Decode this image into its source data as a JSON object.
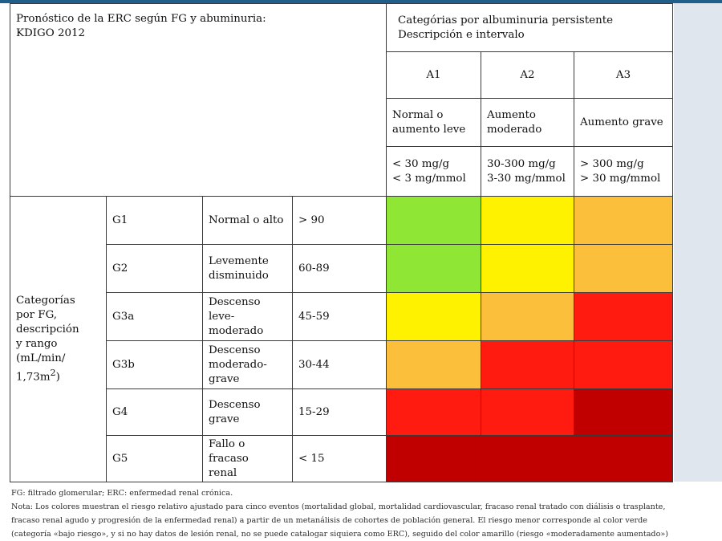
{
  "title_line1": "Pronóstico de la ERC según FG y abuminuria:",
  "title_line2": "KDIGO 2012",
  "albu_header_line1": "Categórias por albuminuria persistente",
  "albu_header_line2": "Descripción e intervalo",
  "albu_categories": [
    {
      "code": "A1",
      "desc_line1": "Normal o",
      "desc_line2": "aumento leve",
      "range_line1": "< 30 mg/g",
      "range_line2": "< 3 mg/mmol"
    },
    {
      "code": "A2",
      "desc_line1": "Aumento",
      "desc_line2": "moderado",
      "range_line1": "30-300 mg/g",
      "range_line2": "3-30 mg/mmol"
    },
    {
      "code": "A3",
      "desc_line1": "Aumento grave",
      "desc_line2": "",
      "range_line1": "> 300 mg/g",
      "range_line2": "> 30 mg/mmol"
    }
  ],
  "fg_header": {
    "l1": "Categorías",
    "l2": "por FG,",
    "l3": "descripción",
    "l4": "y rango",
    "l5": "(mL/min/",
    "l6_base": "1,73m",
    "l6_sup": "2",
    "l6_tail": ")"
  },
  "rows": [
    {
      "code": "G1",
      "desc_line1": "Normal o alto",
      "desc_line2": "",
      "desc_line3": "",
      "range": "> 90"
    },
    {
      "code": "G2",
      "desc_line1": "Levemente",
      "desc_line2": "disminuido",
      "desc_line3": "",
      "range": "60-89"
    },
    {
      "code": "G3a",
      "desc_line1": "Descenso",
      "desc_line2": "leve-moderado",
      "desc_line3": "",
      "range": "45-59"
    },
    {
      "code": "G3b",
      "desc_line1": "Descenso",
      "desc_line2": "moderado-",
      "desc_line3": "grave",
      "range": "30-44"
    },
    {
      "code": "G4",
      "desc_line1": "Descenso",
      "desc_line2": "grave",
      "desc_line3": "",
      "range": "15-29"
    },
    {
      "code": "G5",
      "desc_line1": "Fallo o",
      "desc_line2": "fracaso",
      "desc_line3": "renal",
      "range": "< 15"
    }
  ],
  "risk_colors": {
    "green": "#8fe634",
    "yellow": "#fff200",
    "orange": "#fbbf3c",
    "red": "#ff1b10",
    "darkred": "#c00000"
  },
  "risk_grid": [
    [
      "green",
      "yellow",
      "orange"
    ],
    [
      "green",
      "yellow",
      "orange"
    ],
    [
      "yellow",
      "orange",
      "red"
    ],
    [
      "orange",
      "red",
      "red"
    ],
    [
      "red",
      "red",
      "darkred"
    ],
    [
      "darkred",
      "darkred",
      "darkred"
    ]
  ],
  "notes": {
    "line1": "FG: filtrado glomerular; ERC: enfermedad renal crónica.",
    "line2": "Nota: Los colores muestran el riesgo relativo ajustado para cinco eventos (mortalidad global, mortalidad cardiovascular, fracaso renal tratado con diálisis o trasplante,",
    "line3": "fracaso renal agudo y progresión de la enfermedad renal) a partir de un metanálisis de cohortes de población general. El riesgo menor corresponde al color verde",
    "line4": "(categoría «bajo riesgo», y si no hay datos de lesión renal, no se puede catalogar siquiera como ERC), seguido del color amarillo (riesgo «moderadamente aumentado»)"
  }
}
